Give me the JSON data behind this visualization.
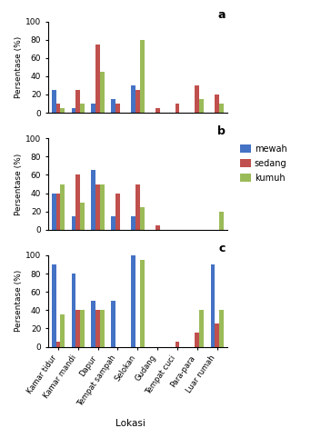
{
  "categories": [
    "Kamar tidur",
    "Kamar mandi",
    "Dapur",
    "Tempat sampah",
    "Selokan",
    "Gudang",
    "Tempat cuci",
    "Para-para",
    "Luar rumah"
  ],
  "subplot_labels": [
    "a",
    "b",
    "c"
  ],
  "series": [
    "mewah",
    "sedang",
    "kumuh"
  ],
  "colors": [
    "#4472c4",
    "#c0504d",
    "#9bbb59"
  ],
  "data": {
    "a": {
      "mewah": [
        25,
        5,
        10,
        15,
        30,
        0,
        0,
        0,
        0
      ],
      "sedang": [
        10,
        25,
        75,
        10,
        25,
        5,
        10,
        30,
        20
      ],
      "kumuh": [
        5,
        10,
        45,
        0,
        80,
        0,
        0,
        15,
        10
      ]
    },
    "b": {
      "mewah": [
        40,
        15,
        65,
        15,
        15,
        0,
        0,
        0,
        0
      ],
      "sedang": [
        40,
        60,
        50,
        40,
        50,
        5,
        0,
        0,
        0
      ],
      "kumuh": [
        50,
        30,
        50,
        0,
        25,
        0,
        0,
        0,
        20
      ]
    },
    "c": {
      "mewah": [
        90,
        80,
        50,
        50,
        100,
        0,
        0,
        0,
        90
      ],
      "sedang": [
        5,
        40,
        40,
        0,
        0,
        0,
        5,
        15,
        25
      ],
      "kumuh": [
        35,
        40,
        40,
        0,
        95,
        0,
        0,
        40,
        40
      ]
    }
  },
  "ylabel": "Persentase (%)",
  "xlabel": "Lokasi",
  "ylim": [
    0,
    100
  ],
  "yticks": [
    0,
    20,
    40,
    60,
    80,
    100
  ]
}
